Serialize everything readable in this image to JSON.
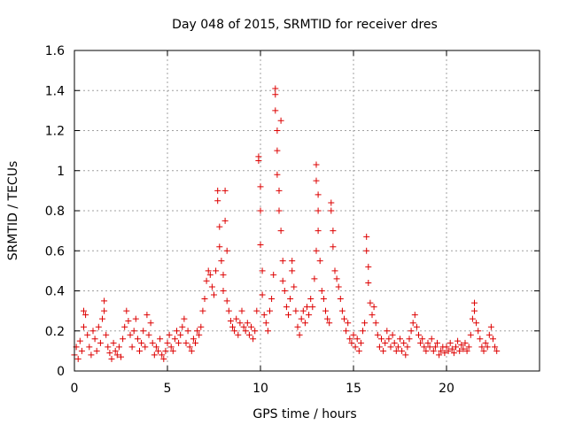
{
  "chart_data": {
    "type": "scatter",
    "title": "Day 048 of 2015, SRMTID for receiver dres",
    "xlabel": "GPS time / hours",
    "ylabel": "SRMTID / TECUs",
    "xlim": [
      0,
      25
    ],
    "ylim": [
      0,
      1.6
    ],
    "grid": true,
    "x_ticks": [
      0,
      5,
      10,
      15,
      20
    ],
    "x_tick_labels": [
      "0",
      "5",
      "10",
      "15",
      "20"
    ],
    "y_ticks": [
      0,
      0.2,
      0.4,
      0.6,
      0.8,
      1.0,
      1.2,
      1.4,
      1.6
    ],
    "y_tick_labels": [
      "0",
      "0.2",
      "0.4",
      "0.6",
      "0.8",
      "1",
      "1.2",
      "1.4",
      "1.6"
    ],
    "marker": "+",
    "marker_color": "#dd0000",
    "data_range_x": [
      0,
      22.7
    ],
    "series": [
      {
        "name": "SRMTID",
        "points": [
          [
            0.0,
            0.08
          ],
          [
            0.1,
            0.12
          ],
          [
            0.2,
            0.06
          ],
          [
            0.3,
            0.15
          ],
          [
            0.4,
            0.1
          ],
          [
            0.5,
            0.22
          ],
          [
            0.5,
            0.3
          ],
          [
            0.6,
            0.28
          ],
          [
            0.7,
            0.18
          ],
          [
            0.8,
            0.12
          ],
          [
            0.9,
            0.08
          ],
          [
            1.0,
            0.2
          ],
          [
            1.1,
            0.16
          ],
          [
            1.2,
            0.1
          ],
          [
            1.3,
            0.22
          ],
          [
            1.4,
            0.14
          ],
          [
            1.5,
            0.26
          ],
          [
            1.6,
            0.35
          ],
          [
            1.6,
            0.3
          ],
          [
            1.7,
            0.18
          ],
          [
            1.8,
            0.12
          ],
          [
            1.9,
            0.09
          ],
          [
            2.0,
            0.06
          ],
          [
            2.1,
            0.14
          ],
          [
            2.2,
            0.1
          ],
          [
            2.3,
            0.08
          ],
          [
            2.4,
            0.12
          ],
          [
            2.5,
            0.07
          ],
          [
            2.6,
            0.16
          ],
          [
            2.7,
            0.22
          ],
          [
            2.8,
            0.3
          ],
          [
            2.9,
            0.25
          ],
          [
            3.0,
            0.18
          ],
          [
            3.1,
            0.12
          ],
          [
            3.2,
            0.2
          ],
          [
            3.3,
            0.26
          ],
          [
            3.4,
            0.16
          ],
          [
            3.5,
            0.1
          ],
          [
            3.6,
            0.14
          ],
          [
            3.7,
            0.2
          ],
          [
            3.8,
            0.12
          ],
          [
            3.9,
            0.28
          ],
          [
            4.0,
            0.18
          ],
          [
            4.1,
            0.24
          ],
          [
            4.2,
            0.14
          ],
          [
            4.3,
            0.08
          ],
          [
            4.4,
            0.12
          ],
          [
            4.5,
            0.1
          ],
          [
            4.6,
            0.16
          ],
          [
            4.7,
            0.08
          ],
          [
            4.8,
            0.06
          ],
          [
            4.9,
            0.1
          ],
          [
            5.0,
            0.14
          ],
          [
            5.1,
            0.18
          ],
          [
            5.2,
            0.12
          ],
          [
            5.3,
            0.1
          ],
          [
            5.4,
            0.16
          ],
          [
            5.5,
            0.2
          ],
          [
            5.6,
            0.14
          ],
          [
            5.7,
            0.18
          ],
          [
            5.8,
            0.22
          ],
          [
            5.9,
            0.26
          ],
          [
            6.0,
            0.14
          ],
          [
            6.1,
            0.2
          ],
          [
            6.2,
            0.12
          ],
          [
            6.3,
            0.1
          ],
          [
            6.4,
            0.16
          ],
          [
            6.5,
            0.14
          ],
          [
            6.6,
            0.2
          ],
          [
            6.7,
            0.18
          ],
          [
            6.8,
            0.22
          ],
          [
            6.9,
            0.3
          ],
          [
            7.0,
            0.36
          ],
          [
            7.1,
            0.45
          ],
          [
            7.2,
            0.5
          ],
          [
            7.3,
            0.48
          ],
          [
            7.4,
            0.42
          ],
          [
            7.5,
            0.38
          ],
          [
            7.6,
            0.5
          ],
          [
            7.7,
            0.9
          ],
          [
            7.7,
            0.85
          ],
          [
            7.8,
            0.72
          ],
          [
            7.8,
            0.62
          ],
          [
            7.9,
            0.55
          ],
          [
            8.0,
            0.48
          ],
          [
            8.0,
            0.4
          ],
          [
            8.1,
            0.75
          ],
          [
            8.1,
            0.9
          ],
          [
            8.2,
            0.6
          ],
          [
            8.2,
            0.35
          ],
          [
            8.3,
            0.3
          ],
          [
            8.4,
            0.25
          ],
          [
            8.5,
            0.22
          ],
          [
            8.6,
            0.2
          ],
          [
            8.7,
            0.26
          ],
          [
            8.8,
            0.18
          ],
          [
            8.9,
            0.24
          ],
          [
            9.0,
            0.3
          ],
          [
            9.1,
            0.22
          ],
          [
            9.2,
            0.2
          ],
          [
            9.3,
            0.24
          ],
          [
            9.4,
            0.18
          ],
          [
            9.5,
            0.22
          ],
          [
            9.6,
            0.16
          ],
          [
            9.7,
            0.2
          ],
          [
            9.8,
            0.3
          ],
          [
            9.9,
            1.07
          ],
          [
            9.9,
            1.05
          ],
          [
            10.0,
            0.92
          ],
          [
            10.0,
            0.8
          ],
          [
            10.0,
            0.63
          ],
          [
            10.1,
            0.5
          ],
          [
            10.1,
            0.38
          ],
          [
            10.2,
            0.28
          ],
          [
            10.3,
            0.24
          ],
          [
            10.4,
            0.2
          ],
          [
            10.5,
            0.3
          ],
          [
            10.6,
            0.36
          ],
          [
            10.7,
            0.48
          ],
          [
            10.8,
            1.41
          ],
          [
            10.8,
            1.38
          ],
          [
            10.8,
            1.3
          ],
          [
            10.9,
            1.2
          ],
          [
            10.9,
            1.1
          ],
          [
            10.9,
            0.98
          ],
          [
            11.0,
            0.9
          ],
          [
            11.0,
            0.8
          ],
          [
            11.1,
            0.7
          ],
          [
            11.1,
            1.25
          ],
          [
            11.2,
            0.55
          ],
          [
            11.2,
            0.45
          ],
          [
            11.3,
            0.4
          ],
          [
            11.4,
            0.32
          ],
          [
            11.5,
            0.28
          ],
          [
            11.6,
            0.36
          ],
          [
            11.7,
            0.55
          ],
          [
            11.7,
            0.5
          ],
          [
            11.8,
            0.42
          ],
          [
            11.9,
            0.3
          ],
          [
            12.0,
            0.22
          ],
          [
            12.1,
            0.18
          ],
          [
            12.2,
            0.26
          ],
          [
            12.3,
            0.3
          ],
          [
            12.4,
            0.24
          ],
          [
            12.5,
            0.32
          ],
          [
            12.6,
            0.28
          ],
          [
            12.7,
            0.36
          ],
          [
            12.8,
            0.32
          ],
          [
            12.9,
            0.46
          ],
          [
            13.0,
            0.6
          ],
          [
            13.0,
            1.03
          ],
          [
            13.0,
            0.95
          ],
          [
            13.1,
            0.88
          ],
          [
            13.1,
            0.8
          ],
          [
            13.1,
            0.7
          ],
          [
            13.2,
            0.55
          ],
          [
            13.3,
            0.4
          ],
          [
            13.4,
            0.36
          ],
          [
            13.5,
            0.3
          ],
          [
            13.6,
            0.26
          ],
          [
            13.7,
            0.24
          ],
          [
            13.8,
            0.84
          ],
          [
            13.8,
            0.8
          ],
          [
            13.9,
            0.7
          ],
          [
            13.9,
            0.62
          ],
          [
            14.0,
            0.5
          ],
          [
            14.1,
            0.46
          ],
          [
            14.2,
            0.42
          ],
          [
            14.3,
            0.36
          ],
          [
            14.4,
            0.3
          ],
          [
            14.5,
            0.26
          ],
          [
            14.6,
            0.2
          ],
          [
            14.7,
            0.24
          ],
          [
            14.8,
            0.16
          ],
          [
            14.9,
            0.14
          ],
          [
            15.0,
            0.18
          ],
          [
            15.1,
            0.12
          ],
          [
            15.2,
            0.16
          ],
          [
            15.3,
            0.1
          ],
          [
            15.4,
            0.14
          ],
          [
            15.5,
            0.2
          ],
          [
            15.6,
            0.24
          ],
          [
            15.7,
            0.67
          ],
          [
            15.7,
            0.6
          ],
          [
            15.8,
            0.52
          ],
          [
            15.8,
            0.44
          ],
          [
            15.9,
            0.34
          ],
          [
            16.0,
            0.28
          ],
          [
            16.1,
            0.32
          ],
          [
            16.2,
            0.24
          ],
          [
            16.3,
            0.18
          ],
          [
            16.4,
            0.12
          ],
          [
            16.5,
            0.16
          ],
          [
            16.6,
            0.1
          ],
          [
            16.7,
            0.14
          ],
          [
            16.8,
            0.2
          ],
          [
            16.9,
            0.16
          ],
          [
            17.0,
            0.12
          ],
          [
            17.1,
            0.18
          ],
          [
            17.2,
            0.14
          ],
          [
            17.3,
            0.1
          ],
          [
            17.4,
            0.12
          ],
          [
            17.5,
            0.16
          ],
          [
            17.6,
            0.1
          ],
          [
            17.7,
            0.14
          ],
          [
            17.8,
            0.08
          ],
          [
            17.9,
            0.12
          ],
          [
            18.0,
            0.16
          ],
          [
            18.1,
            0.2
          ],
          [
            18.2,
            0.24
          ],
          [
            18.3,
            0.28
          ],
          [
            18.4,
            0.22
          ],
          [
            18.5,
            0.18
          ],
          [
            18.6,
            0.14
          ],
          [
            18.7,
            0.16
          ],
          [
            18.8,
            0.12
          ],
          [
            18.9,
            0.1
          ],
          [
            19.0,
            0.14
          ],
          [
            19.1,
            0.12
          ],
          [
            19.2,
            0.16
          ],
          [
            19.3,
            0.1
          ],
          [
            19.4,
            0.12
          ],
          [
            19.5,
            0.14
          ],
          [
            19.6,
            0.08
          ],
          [
            19.7,
            0.1
          ],
          [
            19.8,
            0.12
          ],
          [
            19.9,
            0.09
          ],
          [
            20.0,
            0.12
          ],
          [
            20.1,
            0.1
          ],
          [
            20.2,
            0.14
          ],
          [
            20.3,
            0.11
          ],
          [
            20.4,
            0.09
          ],
          [
            20.5,
            0.12
          ],
          [
            20.6,
            0.15
          ],
          [
            20.7,
            0.1
          ],
          [
            20.8,
            0.13
          ],
          [
            20.9,
            0.11
          ],
          [
            21.0,
            0.14
          ],
          [
            21.1,
            0.1
          ],
          [
            21.2,
            0.12
          ],
          [
            21.3,
            0.18
          ],
          [
            21.4,
            0.26
          ],
          [
            21.5,
            0.34
          ],
          [
            21.5,
            0.3
          ],
          [
            21.6,
            0.24
          ],
          [
            21.7,
            0.2
          ],
          [
            21.8,
            0.16
          ],
          [
            21.9,
            0.12
          ],
          [
            22.0,
            0.1
          ],
          [
            22.1,
            0.14
          ],
          [
            22.2,
            0.12
          ],
          [
            22.3,
            0.18
          ],
          [
            22.4,
            0.22
          ],
          [
            22.5,
            0.16
          ],
          [
            22.6,
            0.12
          ],
          [
            22.7,
            0.1
          ]
        ]
      }
    ]
  }
}
